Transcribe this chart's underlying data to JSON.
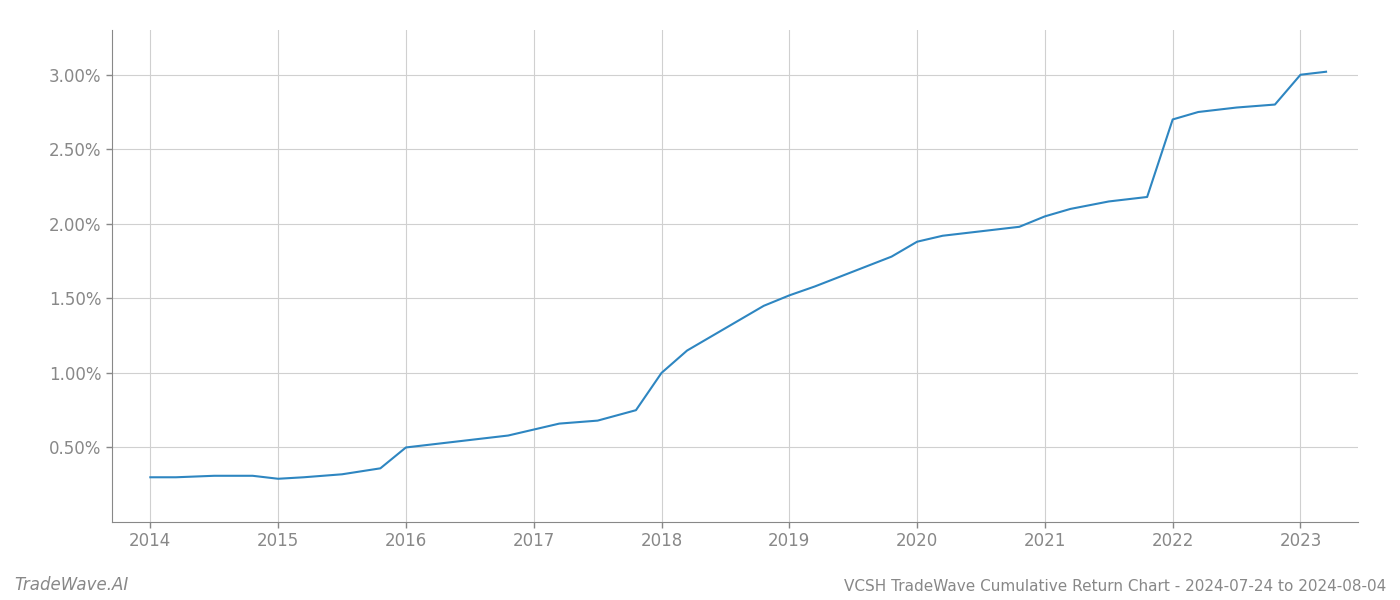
{
  "x_values": [
    2014.0,
    2014.2,
    2014.5,
    2014.8,
    2015.0,
    2015.2,
    2015.5,
    2015.8,
    2016.0,
    2016.2,
    2016.5,
    2016.8,
    2017.0,
    2017.2,
    2017.5,
    2017.8,
    2018.0,
    2018.2,
    2018.5,
    2018.8,
    2019.0,
    2019.2,
    2019.5,
    2019.8,
    2020.0,
    2020.2,
    2020.5,
    2020.8,
    2021.0,
    2021.2,
    2021.5,
    2021.8,
    2022.0,
    2022.2,
    2022.5,
    2022.8,
    2023.0,
    2023.2
  ],
  "y_values": [
    0.003,
    0.003,
    0.0031,
    0.0031,
    0.0029,
    0.003,
    0.0032,
    0.0036,
    0.005,
    0.0052,
    0.0055,
    0.0058,
    0.0062,
    0.0066,
    0.0068,
    0.0075,
    0.01,
    0.0115,
    0.013,
    0.0145,
    0.0152,
    0.0158,
    0.0168,
    0.0178,
    0.0188,
    0.0192,
    0.0195,
    0.0198,
    0.0205,
    0.021,
    0.0215,
    0.0218,
    0.027,
    0.0275,
    0.0278,
    0.028,
    0.03,
    0.0302
  ],
  "line_color": "#2e86c1",
  "line_width": 1.5,
  "background_color": "#ffffff",
  "grid_color": "#d0d0d0",
  "title": "VCSH TradeWave Cumulative Return Chart - 2024-07-24 to 2024-08-04",
  "watermark": "TradeWave.AI",
  "xlim": [
    2013.7,
    2023.45
  ],
  "ylim": [
    0.0,
    0.033
  ],
  "yticks": [
    0.005,
    0.01,
    0.015,
    0.02,
    0.025,
    0.03
  ],
  "xticks": [
    2014,
    2015,
    2016,
    2017,
    2018,
    2019,
    2020,
    2021,
    2022,
    2023
  ],
  "title_fontsize": 11,
  "watermark_fontsize": 12,
  "tick_fontsize": 12,
  "tick_color": "#888888"
}
